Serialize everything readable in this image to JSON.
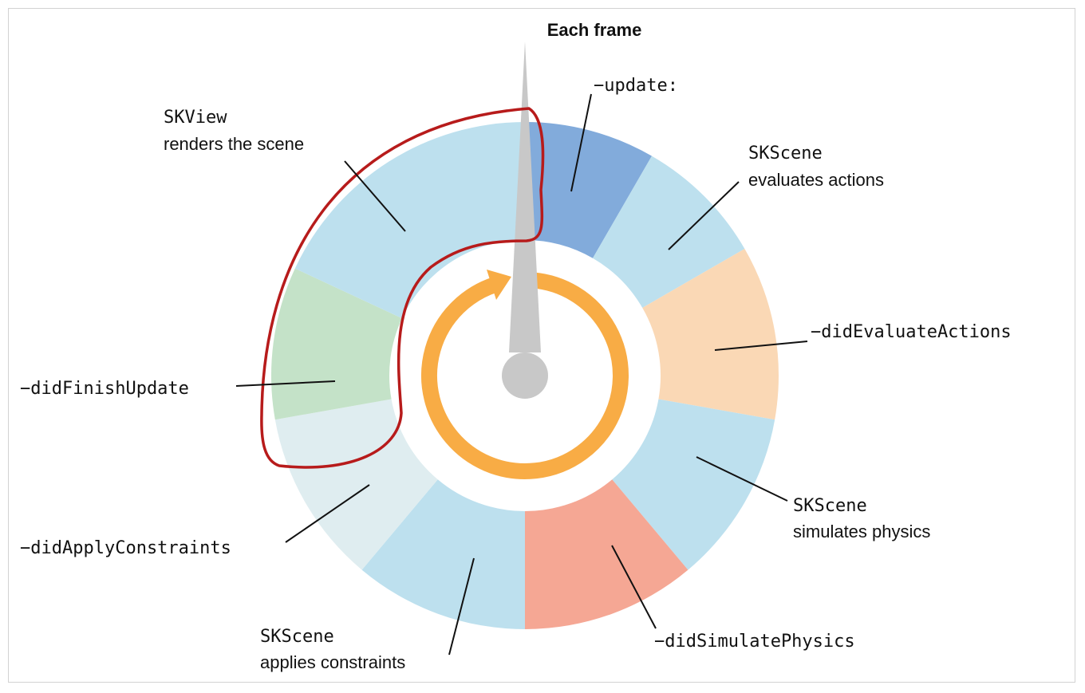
{
  "title": "Each frame",
  "labels": {
    "update": "−update:",
    "evaluate_code": "SKScene",
    "evaluate_text": "evaluates actions",
    "did_evaluate": "−didEvaluateActions",
    "simulate_code": "SKScene",
    "simulate_text": "simulates physics",
    "did_simulate": "−didSimulatePhysics",
    "constraints_code": "SKScene",
    "constraints_text": "applies constraints",
    "did_apply": "−didApplyConstraints",
    "did_finish": "−didFinishUpdate",
    "render_code": "SKView",
    "render_text": "renders the scene"
  },
  "colors": {
    "update": "#82abdb",
    "phase": "#bde0ee",
    "did_evaluate": "#fad8b5",
    "did_simulate": "#f5a794",
    "did_apply": "#dfedf0",
    "did_finish": "#c4e2c8",
    "loop_arrow": "#f8ac45",
    "hand": "#c8c8c8",
    "highlight": "#b71b1b"
  },
  "segments": [
    {
      "name": "update",
      "color_key": "update"
    },
    {
      "name": "evaluate-actions",
      "color_key": "phase"
    },
    {
      "name": "did-evaluate-actions",
      "color_key": "did_evaluate"
    },
    {
      "name": "simulate-physics",
      "color_key": "phase"
    },
    {
      "name": "did-simulate-physics",
      "color_key": "did_simulate"
    },
    {
      "name": "apply-constraints",
      "color_key": "phase"
    },
    {
      "name": "did-apply-constraints",
      "color_key": "did_apply"
    },
    {
      "name": "did-finish-update",
      "color_key": "did_finish"
    },
    {
      "name": "render-scene",
      "color_key": "phase"
    }
  ]
}
